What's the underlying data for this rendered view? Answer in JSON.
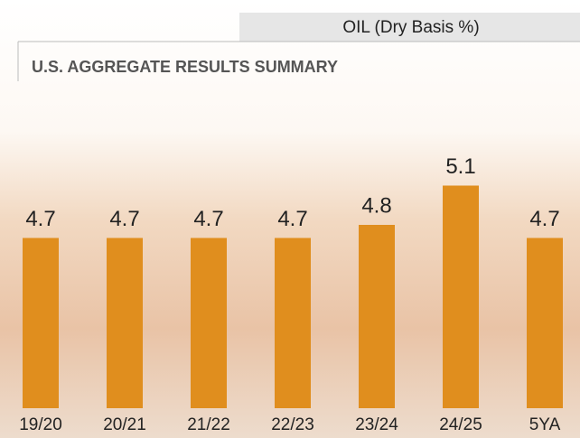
{
  "header": {
    "title": "U.S. AGGREGATE RESULTS SUMMARY"
  },
  "chart_data": {
    "type": "bar",
    "title": "OIL (Dry Basis %)",
    "categories": [
      "19/20",
      "20/21",
      "21/22",
      "22/23",
      "23/24",
      "24/25",
      "5YA"
    ],
    "values": [
      4.7,
      4.7,
      4.7,
      4.7,
      4.8,
      5.1,
      4.7
    ],
    "color": "#e08e1e",
    "ylim": [
      3.4,
      5.2
    ]
  }
}
